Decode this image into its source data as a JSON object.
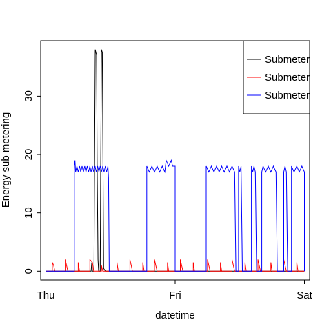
{
  "chart_data": {
    "type": "line",
    "title": "",
    "xlabel": "datetime",
    "ylabel": "Energy sub metering",
    "x_ticks": [
      {
        "label": "Thu",
        "t": 0
      },
      {
        "label": "Fri",
        "t": 1
      },
      {
        "label": "Sat",
        "t": 2
      }
    ],
    "xlim": [
      -0.04,
      2.04
    ],
    "y_ticks": [
      0,
      10,
      20,
      30
    ],
    "ylim": [
      -1.5,
      39.5
    ],
    "grid": false,
    "legend": {
      "placement": "top-right",
      "entries": [
        {
          "label": "Submeter",
          "color": "#000000"
        },
        {
          "label": "Submeter",
          "color": "#ff0000"
        },
        {
          "label": "Submeter",
          "color": "#0000ff"
        }
      ]
    },
    "series": [
      {
        "color": "#000000",
        "points": [
          [
            0,
            0
          ],
          [
            0.35,
            0
          ],
          [
            0.355,
            1.5
          ],
          [
            0.36,
            0
          ],
          [
            0.372,
            0
          ],
          [
            0.376,
            16
          ],
          [
            0.382,
            38
          ],
          [
            0.392,
            37
          ],
          [
            0.397,
            18
          ],
          [
            0.403,
            2
          ],
          [
            0.408,
            0
          ],
          [
            0.42,
            0
          ],
          [
            0.424,
            17
          ],
          [
            0.43,
            38
          ],
          [
            0.437,
            37.5
          ],
          [
            0.442,
            18
          ],
          [
            0.447,
            0.5
          ],
          [
            0.46,
            0
          ],
          [
            2,
            0
          ]
        ]
      },
      {
        "color": "#ff0000",
        "points": [
          [
            0,
            0
          ],
          [
            0.05,
            0
          ],
          [
            0.05,
            1.5
          ],
          [
            0.06,
            1
          ],
          [
            0.07,
            0
          ],
          [
            0.15,
            0
          ],
          [
            0.15,
            2
          ],
          [
            0.16,
            1
          ],
          [
            0.17,
            0
          ],
          [
            0.25,
            0
          ],
          [
            0.25,
            1.5
          ],
          [
            0.26,
            0
          ],
          [
            0.34,
            0
          ],
          [
            0.34,
            2
          ],
          [
            0.36,
            1.5
          ],
          [
            0.37,
            0
          ],
          [
            0.43,
            0
          ],
          [
            0.43,
            1
          ],
          [
            0.44,
            0
          ],
          [
            0.55,
            0
          ],
          [
            0.55,
            1.5
          ],
          [
            0.56,
            0
          ],
          [
            0.65,
            0
          ],
          [
            0.65,
            2
          ],
          [
            0.66,
            1
          ],
          [
            0.67,
            0
          ],
          [
            0.75,
            0
          ],
          [
            0.75,
            1.5
          ],
          [
            0.76,
            0
          ],
          [
            0.84,
            0
          ],
          [
            0.84,
            2
          ],
          [
            0.85,
            1
          ],
          [
            0.86,
            0
          ],
          [
            0.94,
            0
          ],
          [
            0.94,
            1.5
          ],
          [
            0.95,
            0
          ],
          [
            1.04,
            0
          ],
          [
            1.04,
            2
          ],
          [
            1.05,
            1
          ],
          [
            1.06,
            0
          ],
          [
            1.14,
            0
          ],
          [
            1.14,
            1.5
          ],
          [
            1.15,
            0
          ],
          [
            1.25,
            0
          ],
          [
            1.25,
            2
          ],
          [
            1.26,
            1
          ],
          [
            1.27,
            0
          ],
          [
            1.35,
            0
          ],
          [
            1.35,
            1.5
          ],
          [
            1.36,
            0
          ],
          [
            1.44,
            0
          ],
          [
            1.44,
            2
          ],
          [
            1.45,
            1
          ],
          [
            1.46,
            0
          ],
          [
            1.54,
            0
          ],
          [
            1.54,
            1.5
          ],
          [
            1.55,
            0
          ],
          [
            1.64,
            0
          ],
          [
            1.64,
            2
          ],
          [
            1.65,
            1
          ],
          [
            1.66,
            0
          ],
          [
            1.74,
            0
          ],
          [
            1.74,
            1.5
          ],
          [
            1.75,
            0
          ],
          [
            1.84,
            0
          ],
          [
            1.84,
            2
          ],
          [
            1.85,
            1
          ],
          [
            1.86,
            0
          ],
          [
            1.94,
            0
          ],
          [
            1.94,
            1.5
          ],
          [
            1.95,
            0
          ],
          [
            2,
            0
          ]
        ]
      },
      {
        "color": "#0000ff",
        "points": [
          [
            0,
            0
          ],
          [
            0.22,
            0
          ],
          [
            0.22,
            18
          ],
          [
            0.225,
            19
          ],
          [
            0.23,
            17
          ],
          [
            0.24,
            18
          ],
          [
            0.25,
            17
          ],
          [
            0.26,
            18
          ],
          [
            0.27,
            17
          ],
          [
            0.28,
            18
          ],
          [
            0.29,
            17
          ],
          [
            0.3,
            18
          ],
          [
            0.31,
            17
          ],
          [
            0.32,
            18
          ],
          [
            0.33,
            17
          ],
          [
            0.34,
            18
          ],
          [
            0.35,
            17
          ],
          [
            0.36,
            18
          ],
          [
            0.37,
            17
          ],
          [
            0.38,
            18
          ],
          [
            0.39,
            17
          ],
          [
            0.4,
            18
          ],
          [
            0.41,
            17
          ],
          [
            0.42,
            18
          ],
          [
            0.43,
            17
          ],
          [
            0.44,
            18
          ],
          [
            0.45,
            17
          ],
          [
            0.46,
            18
          ],
          [
            0.47,
            17
          ],
          [
            0.48,
            18
          ],
          [
            0.485,
            16
          ],
          [
            0.49,
            0
          ],
          [
            0.78,
            0
          ],
          [
            0.78,
            18
          ],
          [
            0.8,
            17
          ],
          [
            0.82,
            18
          ],
          [
            0.84,
            17
          ],
          [
            0.86,
            18
          ],
          [
            0.88,
            17
          ],
          [
            0.9,
            18
          ],
          [
            0.92,
            17
          ],
          [
            0.93,
            19
          ],
          [
            0.95,
            18
          ],
          [
            0.97,
            19
          ],
          [
            0.98,
            18
          ],
          [
            1.0,
            18
          ],
          [
            1.0,
            0
          ],
          [
            1.24,
            0
          ],
          [
            1.24,
            18
          ],
          [
            1.26,
            17
          ],
          [
            1.28,
            18
          ],
          [
            1.3,
            17
          ],
          [
            1.32,
            18
          ],
          [
            1.34,
            17
          ],
          [
            1.36,
            18
          ],
          [
            1.38,
            17
          ],
          [
            1.4,
            18
          ],
          [
            1.42,
            17
          ],
          [
            1.44,
            18
          ],
          [
            1.46,
            17
          ],
          [
            1.47,
            0
          ],
          [
            1.49,
            0
          ],
          [
            1.49,
            18
          ],
          [
            1.5,
            17
          ],
          [
            1.51,
            18
          ],
          [
            1.52,
            0
          ],
          [
            1.59,
            0
          ],
          [
            1.59,
            18
          ],
          [
            1.6,
            17
          ],
          [
            1.61,
            18
          ],
          [
            1.62,
            17
          ],
          [
            1.63,
            0
          ],
          [
            1.67,
            0
          ],
          [
            1.67,
            17
          ],
          [
            1.68,
            18
          ],
          [
            1.7,
            17
          ],
          [
            1.72,
            18
          ],
          [
            1.74,
            17
          ],
          [
            1.76,
            18
          ],
          [
            1.78,
            17
          ],
          [
            1.79,
            0
          ],
          [
            1.84,
            0
          ],
          [
            1.84,
            17
          ],
          [
            1.85,
            18
          ],
          [
            1.86,
            17
          ],
          [
            1.87,
            0
          ],
          [
            1.9,
            0
          ],
          [
            1.9,
            18
          ],
          [
            1.92,
            17
          ],
          [
            1.94,
            18
          ],
          [
            1.96,
            17
          ],
          [
            1.98,
            18
          ],
          [
            2.0,
            17
          ],
          [
            2.0,
            0
          ]
        ]
      }
    ]
  }
}
